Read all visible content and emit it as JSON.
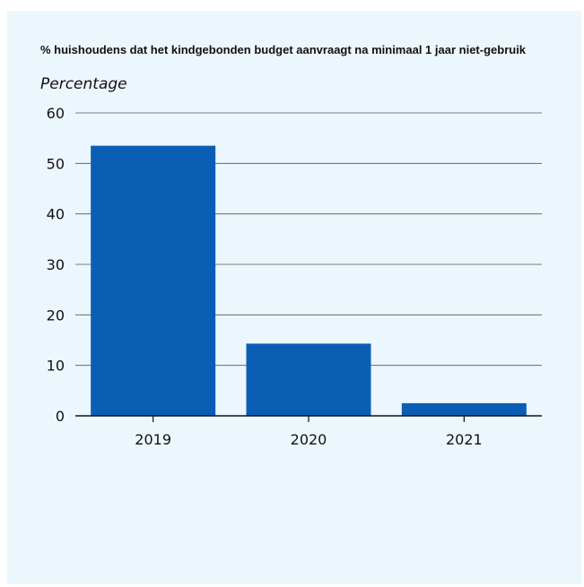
{
  "chart_data": {
    "type": "bar",
    "title": "% huishoudens dat het kindgebonden budget aanvraagt na minimaal 1 jaar niet-gebruik",
    "xlabel": "",
    "ylabel": "Percentage",
    "categories": [
      "2019",
      "2020",
      "2021"
    ],
    "values": [
      53.5,
      14.3,
      2.5
    ],
    "ylim": [
      0,
      60
    ],
    "yticks": [
      0,
      10,
      20,
      30,
      40,
      50,
      60
    ],
    "ytick_labels": [
      "0",
      "10",
      "20",
      "30",
      "40",
      "50",
      "60"
    ],
    "grid": true,
    "legend": "none",
    "bar_color": "#0a5fb4",
    "background_color": "#ecf6fd",
    "grid_color": "#555555"
  }
}
